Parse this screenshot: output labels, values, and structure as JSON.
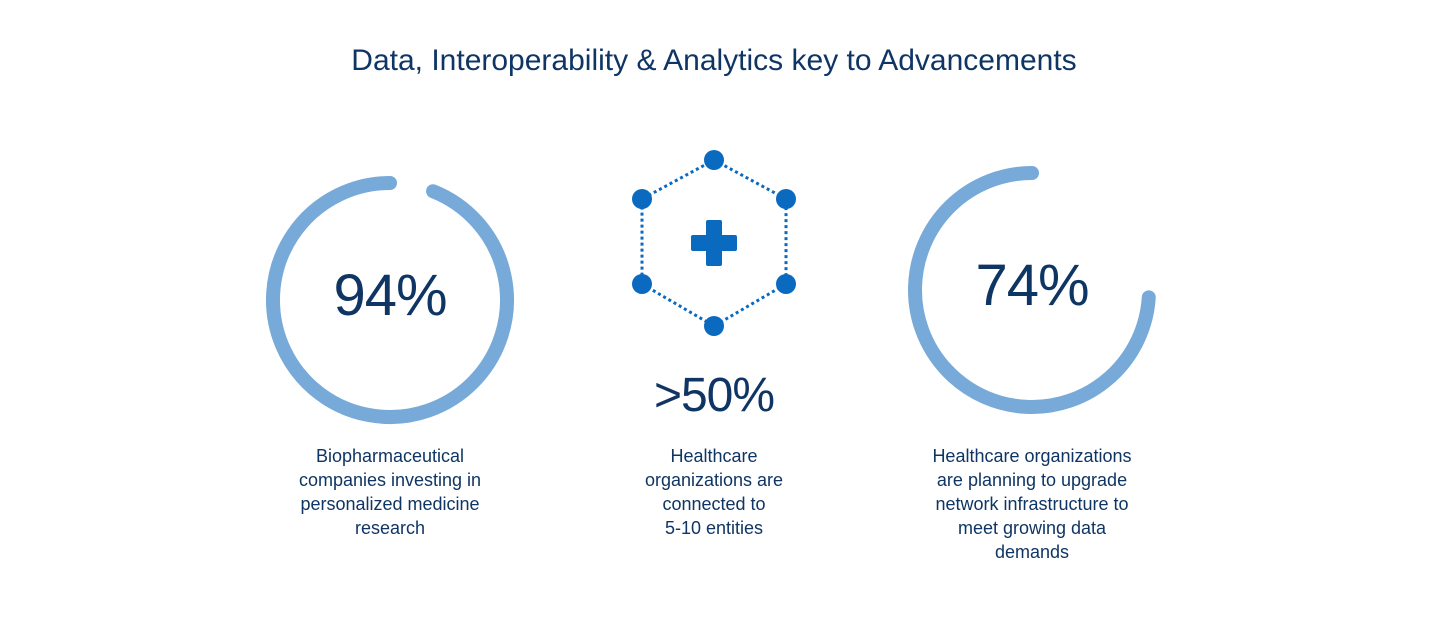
{
  "title": "Data, Interoperability & Analytics key to Advancements",
  "stats": [
    {
      "value_label": "94%",
      "value": 94,
      "description": [
        "Biopharmaceutical",
        "companies investing in",
        "personalized medicine",
        "research"
      ],
      "icon": "progress-ring"
    },
    {
      "value_label": ">50%",
      "description": [
        "Healthcare",
        "organizations are",
        "connected to",
        "5-10 entities"
      ],
      "icon": "network-hexagon-medical-cross-icon"
    },
    {
      "value_label": "74%",
      "value": 74,
      "description": [
        "Healthcare organizations",
        "are planning to upgrade",
        "network infrastructure to",
        "meet growing data",
        "demands"
      ],
      "icon": "progress-ring"
    }
  ],
  "colors": {
    "text": "#0f3564",
    "ring": "#77aad9",
    "accent": "#0a6ac0"
  }
}
